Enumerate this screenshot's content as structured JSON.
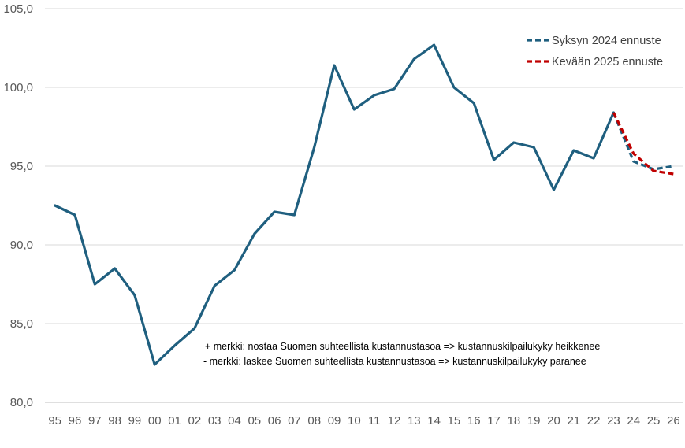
{
  "chart_data": {
    "type": "line",
    "x": [
      "95",
      "96",
      "97",
      "98",
      "99",
      "00",
      "01",
      "02",
      "03",
      "04",
      "05",
      "06",
      "07",
      "08",
      "09",
      "10",
      "11",
      "12",
      "13",
      "14",
      "15",
      "16",
      "17",
      "18",
      "19",
      "20",
      "21",
      "22",
      "23",
      "24",
      "25",
      "26"
    ],
    "ylim": [
      80,
      105
    ],
    "yticks": [
      "80,0",
      "85,0",
      "90,0",
      "95,0",
      "100,0",
      "105,0"
    ],
    "grid": true,
    "legend_position": "top-right",
    "series": [
      {
        "name": "",
        "style": "solid",
        "color": "#1F5F7F",
        "values": [
          92.5,
          91.9,
          87.5,
          88.5,
          86.8,
          82.4,
          83.6,
          84.7,
          87.4,
          88.4,
          90.7,
          92.1,
          91.9,
          96.2,
          101.4,
          98.6,
          99.5,
          99.9,
          101.8,
          102.7,
          100.0,
          99.0,
          95.4,
          96.5,
          96.2,
          93.5,
          96.0,
          95.5,
          98.4,
          null,
          null,
          null
        ]
      },
      {
        "name": "Syksyn 2024 ennuste",
        "style": "dashed",
        "color": "#1F5F7F",
        "values": [
          null,
          null,
          null,
          null,
          null,
          null,
          null,
          null,
          null,
          null,
          null,
          null,
          null,
          null,
          null,
          null,
          null,
          null,
          null,
          null,
          null,
          null,
          null,
          null,
          null,
          null,
          null,
          null,
          98.4,
          95.3,
          94.8,
          95.0
        ]
      },
      {
        "name": "Kevään 2025 ennuste",
        "style": "dashed",
        "color": "#C00000",
        "values": [
          null,
          null,
          null,
          null,
          null,
          null,
          null,
          null,
          null,
          null,
          null,
          null,
          null,
          null,
          null,
          null,
          null,
          null,
          null,
          null,
          null,
          null,
          null,
          null,
          null,
          null,
          null,
          null,
          98.4,
          95.8,
          94.7,
          94.5
        ]
      }
    ],
    "annotations": [
      "+ merkki: nostaa Suomen suhteellista kustannustasoa => kustannuskilpailukyky heikkenee",
      "- merkki: laskee Suomen suhteellista kustannustasoa => kustannuskilpailukyky paranee"
    ]
  }
}
